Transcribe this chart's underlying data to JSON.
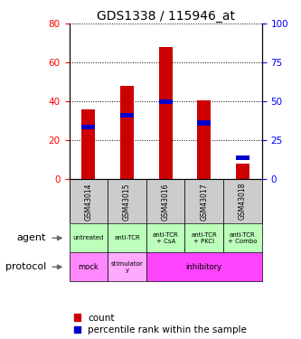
{
  "title": "GDS1338 / 115946_at",
  "samples": [
    "GSM43014",
    "GSM43015",
    "GSM43016",
    "GSM43017",
    "GSM43018"
  ],
  "red_values": [
    36,
    48,
    68,
    40.5,
    8
  ],
  "blue_values": [
    27,
    33,
    40,
    29,
    11
  ],
  "ylim_left": [
    0,
    80
  ],
  "ylim_right": [
    0,
    100
  ],
  "yticks_left": [
    0,
    20,
    40,
    60,
    80
  ],
  "yticks_right": [
    0,
    25,
    50,
    75,
    100
  ],
  "agent_labels": [
    "untreated",
    "anti-TCR",
    "anti-TCR\n+ CsA",
    "anti-TCR\n+ PKCi",
    "anti-TCR\n+ Combo"
  ],
  "agent_bg": "#bbffbb",
  "protocol_mock_bg": "#ff88ff",
  "protocol_stim_bg": "#ffaaff",
  "protocol_inhib_bg": "#ff44ff",
  "sample_bg": "#cccccc",
  "bar_color_red": "#cc0000",
  "bar_color_blue": "#0000cc",
  "title_fontsize": 10,
  "tick_fontsize": 7.5,
  "label_fontsize": 8,
  "legend_fontsize": 7.5,
  "bar_width": 0.35
}
